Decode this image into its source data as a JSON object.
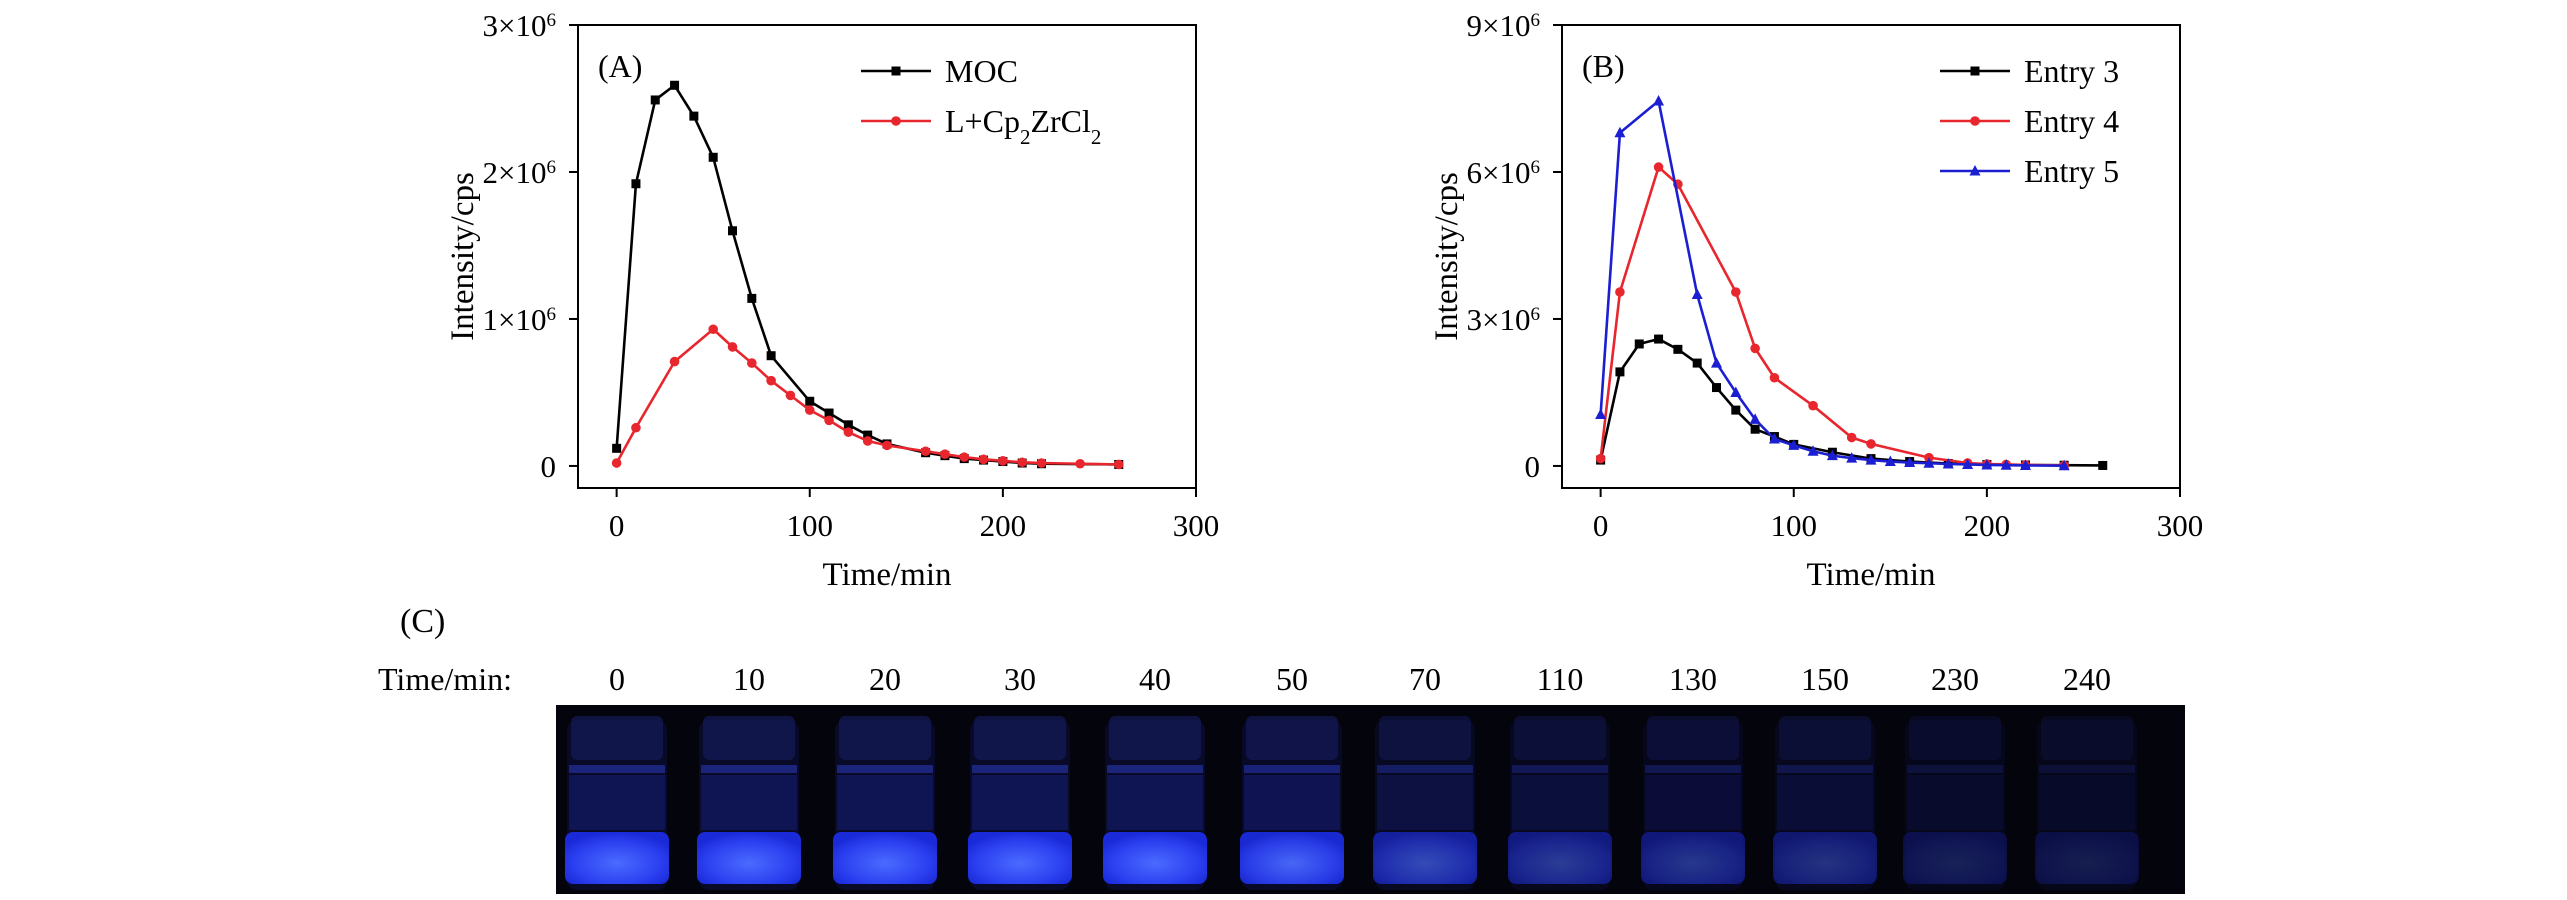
{
  "chart_data": [
    {
      "panel_label": "(A)",
      "type": "line",
      "xlabel": "Time/min",
      "ylabel": "Intensity/cps",
      "xlim": [
        -20,
        300
      ],
      "ylim": [
        -150000,
        3000000
      ],
      "xticks": [
        0,
        100,
        200,
        300
      ],
      "xtick_labels": [
        "0",
        "100",
        "200",
        "300"
      ],
      "yticks": [
        0,
        1000000,
        2000000,
        3000000
      ],
      "ytick_labels": [
        {
          "base": "0",
          "exp": ""
        },
        {
          "base": "1×10",
          "exp": "6"
        },
        {
          "base": "2×10",
          "exp": "6"
        },
        {
          "base": "3×10",
          "exp": "6"
        }
      ],
      "legend_position": "top-right",
      "series": [
        {
          "name": "MOC",
          "name_parts": [
            {
              "t": "MOC",
              "sub": false
            }
          ],
          "color": "#000000",
          "marker": "square",
          "x": [
            0,
            10,
            20,
            30,
            40,
            50,
            60,
            70,
            80,
            100,
            110,
            120,
            130,
            140,
            160,
            170,
            180,
            190,
            200,
            210,
            220,
            260
          ],
          "y": [
            120000,
            1920000,
            2490000,
            2590000,
            2380000,
            2100000,
            1600000,
            1140000,
            750000,
            440000,
            360000,
            280000,
            210000,
            150000,
            90000,
            70000,
            50000,
            40000,
            30000,
            20000,
            15000,
            10000
          ]
        },
        {
          "name": "L+Cp2ZrCl2",
          "name_parts": [
            {
              "t": "L+Cp",
              "sub": false
            },
            {
              "t": "2",
              "sub": true
            },
            {
              "t": "ZrCl",
              "sub": false
            },
            {
              "t": "2",
              "sub": true
            }
          ],
          "color": "#e8262d",
          "marker": "circle",
          "x": [
            0,
            10,
            30,
            50,
            60,
            70,
            80,
            90,
            100,
            110,
            120,
            130,
            140,
            160,
            170,
            180,
            190,
            200,
            210,
            220,
            240,
            260
          ],
          "y": [
            20000,
            260000,
            710000,
            930000,
            810000,
            700000,
            580000,
            480000,
            380000,
            310000,
            230000,
            170000,
            140000,
            100000,
            80000,
            60000,
            45000,
            35000,
            25000,
            20000,
            15000,
            10000
          ]
        }
      ]
    },
    {
      "panel_label": "(B)",
      "type": "line",
      "xlabel": "Time/min",
      "ylabel": "Intensity/cps",
      "xlim": [
        -20,
        300
      ],
      "ylim": [
        -450000,
        9000000
      ],
      "xticks": [
        0,
        100,
        200,
        300
      ],
      "xtick_labels": [
        "0",
        "100",
        "200",
        "300"
      ],
      "yticks": [
        0,
        3000000,
        6000000,
        9000000
      ],
      "ytick_labels": [
        {
          "base": "0",
          "exp": ""
        },
        {
          "base": "3×10",
          "exp": "6"
        },
        {
          "base": "6×10",
          "exp": "6"
        },
        {
          "base": "9×10",
          "exp": "6"
        }
      ],
      "legend_position": "top-right",
      "series": [
        {
          "name": "Entry 3",
          "name_parts": [
            {
              "t": "Entry 3",
              "sub": false
            }
          ],
          "color": "#000000",
          "marker": "square",
          "x": [
            0,
            10,
            20,
            30,
            40,
            50,
            60,
            70,
            80,
            90,
            100,
            120,
            140,
            160,
            180,
            200,
            220,
            240,
            260
          ],
          "y": [
            120000,
            1920000,
            2490000,
            2590000,
            2380000,
            2100000,
            1600000,
            1140000,
            750000,
            600000,
            440000,
            280000,
            150000,
            90000,
            50000,
            30000,
            20000,
            15000,
            10000
          ]
        },
        {
          "name": "Entry 4",
          "name_parts": [
            {
              "t": "Entry 4",
              "sub": false
            }
          ],
          "color": "#e8262d",
          "marker": "circle",
          "x": [
            0,
            10,
            30,
            40,
            70,
            80,
            90,
            110,
            130,
            140,
            170,
            190,
            200,
            210,
            220,
            240
          ],
          "y": [
            150000,
            3550000,
            6100000,
            5750000,
            3550000,
            2400000,
            1800000,
            1230000,
            580000,
            450000,
            170000,
            60000,
            40000,
            30000,
            20000,
            10000
          ]
        },
        {
          "name": "Entry 5",
          "name_parts": [
            {
              "t": "Entry 5",
              "sub": false
            }
          ],
          "color": "#1b1fd1",
          "marker": "triangle",
          "x": [
            0,
            10,
            30,
            50,
            60,
            70,
            80,
            90,
            100,
            110,
            120,
            130,
            140,
            150,
            160,
            170,
            180,
            190,
            200,
            210,
            220,
            240
          ],
          "y": [
            1050000,
            6800000,
            7450000,
            3500000,
            2100000,
            1500000,
            950000,
            550000,
            420000,
            300000,
            210000,
            160000,
            120000,
            90000,
            70000,
            55000,
            40000,
            30000,
            20000,
            15000,
            10000,
            5000
          ]
        }
      ]
    },
    {
      "panel_label": "(C)",
      "type": "photo-strip",
      "row_label": "Time/min:",
      "times": [
        "0",
        "10",
        "20",
        "30",
        "40",
        "50",
        "70",
        "110",
        "130",
        "150",
        "230",
        "240"
      ],
      "glow_intensity": [
        1.0,
        1.0,
        1.0,
        1.0,
        1.0,
        0.95,
        0.62,
        0.45,
        0.4,
        0.34,
        0.14,
        0.1
      ]
    }
  ]
}
